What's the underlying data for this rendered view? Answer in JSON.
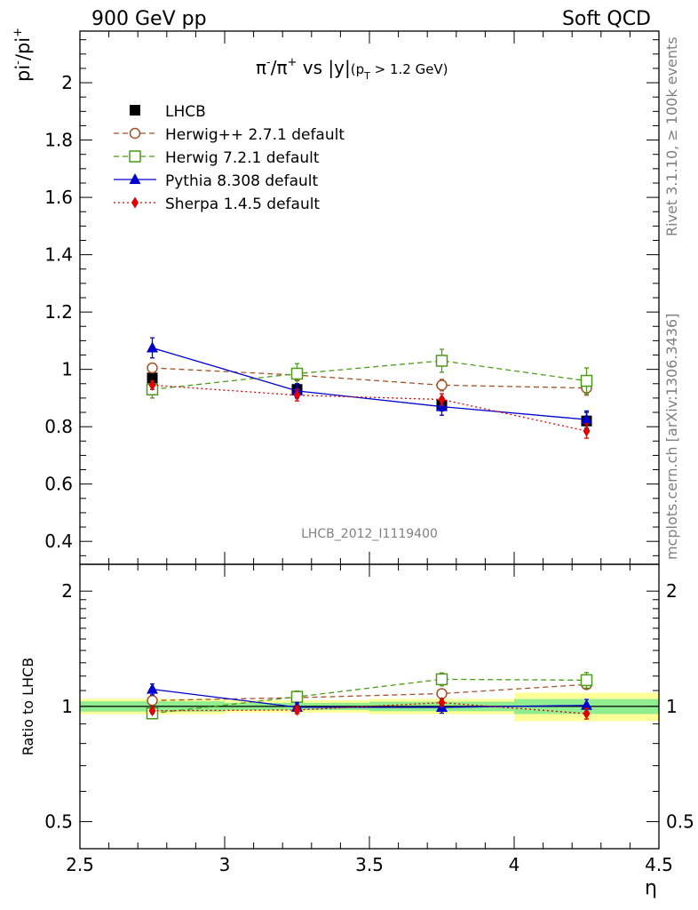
{
  "header": {
    "left": "900 GeV pp",
    "right": "Soft QCD"
  },
  "side": {
    "rivet": "Rivet 3.1.10, ≥ 100k events",
    "mcplots": "mcplots.cern.ch [arXiv:1306.3436]"
  },
  "chart_data": {
    "type": "line",
    "title": {
      "pre": "π",
      "sup1": "-",
      "mid": "/π",
      "sup2": "+",
      "post": " vs |y|",
      "paren": "(p",
      "sub": "T",
      "cond": " > 1.2 GeV)"
    },
    "analysis_label": "LHCB_2012_I1119400",
    "ylabel": {
      "base": "pi",
      "sup1": "-",
      "mid": "/pi",
      "sup2": "+"
    },
    "ratio_ylabel": "Ratio to LHCB",
    "xlabel": "η",
    "xlim": [
      2.5,
      4.5
    ],
    "ylim": [
      0.32,
      2.18
    ],
    "ratio_ylim": [
      0.425,
      2.35
    ],
    "ratio_scale": "log",
    "x_ticks": [
      2.5,
      3,
      3.5,
      4,
      4.5
    ],
    "x_tick_labels": [
      "2.5",
      "3",
      "3.5",
      "4",
      "4.5"
    ],
    "y_ticks": [
      0.4,
      0.6,
      0.8,
      1,
      1.2,
      1.4,
      1.6,
      1.8,
      2
    ],
    "y_tick_labels": [
      "0.4",
      "0.6",
      "0.8",
      "1",
      "1.2",
      "1.4",
      "1.6",
      "1.8",
      "2"
    ],
    "ratio_ticks": [
      0.5,
      1,
      2
    ],
    "ratio_tick_labels": [
      "0.5",
      "1",
      "2"
    ],
    "legend_position": "top-left",
    "x": [
      2.75,
      3.25,
      3.75,
      4.25
    ],
    "bin_edges": [
      2.5,
      3,
      3.5,
      4,
      4.5
    ],
    "reference": {
      "name": "LHCB",
      "values": [
        0.97,
        0.93,
        0.875,
        0.82
      ],
      "errors": [
        0.03,
        0.02,
        0.02,
        0.03
      ],
      "band_inner": [
        0.03,
        0.02,
        0.025,
        0.037
      ],
      "band_outer": [
        0.045,
        0.035,
        0.04,
        0.07
      ]
    },
    "series": [
      {
        "name": "Herwig++ 2.7.1 default",
        "values": [
          1.005,
          0.98,
          0.945,
          0.935
        ],
        "errors": [
          0.015,
          0.02,
          0.02,
          0.025
        ],
        "color": "#a0522d",
        "marker": "circle-open",
        "dash": "6,4"
      },
      {
        "name": "Herwig 7.2.1 default",
        "values": [
          0.93,
          0.985,
          1.03,
          0.96
        ],
        "errors": [
          0.03,
          0.035,
          0.04,
          0.045
        ],
        "color": "#4c9a18",
        "marker": "square-open",
        "dash": "6,4"
      },
      {
        "name": "Pythia 8.308 default",
        "values": [
          1.075,
          0.925,
          0.87,
          0.825
        ],
        "errors": [
          0.035,
          0.025,
          0.03,
          0.03
        ],
        "color": "#0000cd",
        "marker": "triangle",
        "dash": ""
      },
      {
        "name": "Sherpa 1.4.5 default",
        "values": [
          0.945,
          0.91,
          0.895,
          0.785
        ],
        "errors": [
          0.015,
          0.02,
          0.02,
          0.025
        ],
        "color": "#e00000",
        "marker": "diamond",
        "dash": "2,3"
      }
    ],
    "colors": {
      "ref": "#000000",
      "band_inner": "#90ee90",
      "band_outer": "#ffff99"
    }
  }
}
